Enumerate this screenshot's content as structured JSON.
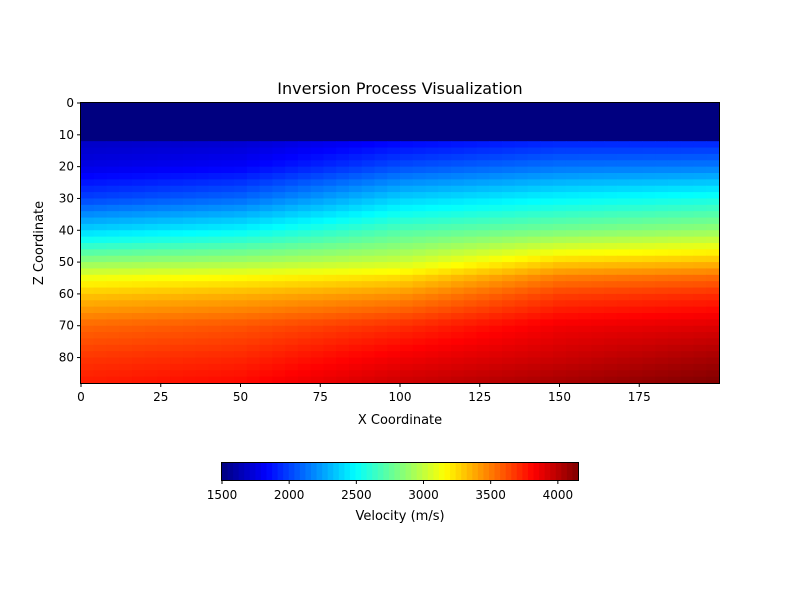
{
  "chart_data": {
    "type": "heatmap",
    "title": "Inversion Process Visualization",
    "xlabel": "X Coordinate",
    "ylabel": "Z Coordinate",
    "xlim": [
      0,
      200
    ],
    "ylim": [
      88,
      0
    ],
    "x_ticks": [
      0,
      25,
      50,
      75,
      100,
      125,
      150,
      175
    ],
    "y_ticks": [
      0,
      10,
      20,
      30,
      40,
      50,
      60,
      70,
      80
    ],
    "colormap": "jet",
    "colorbar": {
      "label": "Velocity (m/s)",
      "range": [
        1500,
        4150
      ],
      "ticks": [
        1500,
        2000,
        2500,
        3000,
        3500,
        4000
      ],
      "orientation": "horizontal",
      "placement": "bottom"
    },
    "velocity_profiles": {
      "z": [
        0,
        11,
        11.5,
        20,
        30,
        40,
        45,
        50,
        55,
        60,
        70,
        80,
        88
      ],
      "columns": [
        {
          "x": 0,
          "v": [
            1500,
            1500,
            1680,
            1760,
            2000,
            2380,
            2620,
            2870,
            3120,
            3300,
            3550,
            3680,
            3750
          ]
        },
        {
          "x": 50,
          "v": [
            1500,
            1500,
            1700,
            1820,
            2100,
            2480,
            2700,
            2920,
            3170,
            3350,
            3600,
            3720,
            3800
          ]
        },
        {
          "x": 100,
          "v": [
            1500,
            1500,
            1820,
            2030,
            2370,
            2700,
            2850,
            3020,
            3250,
            3430,
            3700,
            3850,
            3950
          ]
        },
        {
          "x": 150,
          "v": [
            1500,
            1500,
            1900,
            2130,
            2480,
            2800,
            3030,
            3280,
            3500,
            3650,
            3850,
            3950,
            4050
          ]
        },
        {
          "x": 200,
          "v": [
            1500,
            1500,
            1900,
            2150,
            2550,
            2880,
            3100,
            3330,
            3550,
            3700,
            3900,
            4050,
            4150
          ]
        }
      ]
    }
  }
}
